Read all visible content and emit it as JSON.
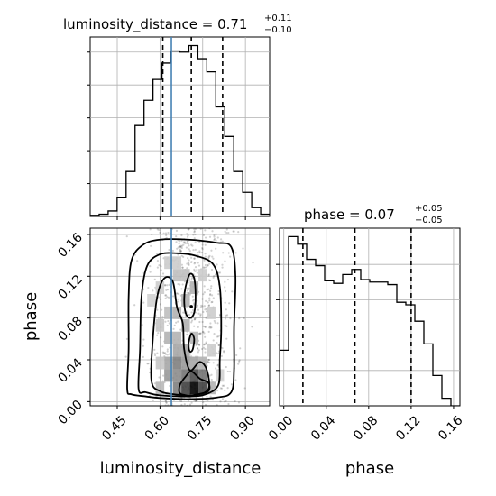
{
  "chart_data": {
    "type": "corner",
    "parameters": [
      "luminosity_distance",
      "phase"
    ],
    "truth_color": "#4682b4",
    "truths": {
      "luminosity_distance": 0.64
    },
    "luminosity_distance": {
      "title_name": "luminosity_distance",
      "title_value": "0.71",
      "title_upper": "+0.11",
      "title_lower": "−0.10",
      "quantiles": [
        0.61,
        0.71,
        0.82
      ],
      "xlim": [
        0.355,
        0.985
      ],
      "xticks": [
        0.45,
        0.6,
        0.75,
        0.9
      ],
      "xtick_labels": [
        "0.45",
        "0.60",
        "0.75",
        "0.90"
      ],
      "xlabel": "luminosity_distance",
      "hist_edges": [
        0.355,
        0.3865,
        0.418,
        0.4495,
        0.481,
        0.5125,
        0.544,
        0.5755,
        0.607,
        0.6385,
        0.67,
        0.7015,
        0.733,
        0.7645,
        0.796,
        0.8275,
        0.859,
        0.8905,
        0.922,
        0.9535,
        0.985
      ],
      "hist_counts": [
        1,
        2,
        5,
        17,
        41,
        83,
        106,
        125,
        140,
        151,
        150,
        156,
        144,
        132,
        100,
        73,
        41,
        22,
        8,
        2
      ]
    },
    "phase": {
      "title_name": "phase",
      "title_value": "0.07",
      "title_upper": "+0.05",
      "title_lower": "−0.05",
      "quantiles": [
        0.018,
        0.067,
        0.12
      ],
      "xlim": [
        -0.004,
        0.166
      ],
      "xticks": [
        0.0,
        0.04,
        0.08,
        0.12,
        0.16
      ],
      "xtick_labels": [
        "0.00",
        "0.04",
        "0.08",
        "0.12",
        "0.16"
      ],
      "xlabel": "phase",
      "hist_edges": [
        -0.004,
        0.0045,
        0.013,
        0.0215,
        0.03,
        0.0385,
        0.047,
        0.0555,
        0.064,
        0.0725,
        0.081,
        0.0895,
        0.098,
        0.1065,
        0.115,
        0.1235,
        0.132,
        0.1405,
        0.149,
        0.1575,
        0.166
      ],
      "hist_counts": [
        44,
        134,
        128,
        116,
        111,
        99,
        97,
        104,
        108,
        100,
        98,
        98,
        96,
        82,
        80,
        67,
        49,
        24,
        6,
        0
      ]
    },
    "joint": {
      "xlabel": "luminosity_distance",
      "ylabel": "phase",
      "xlim": [
        0.355,
        0.985
      ],
      "ylim": [
        -0.004,
        0.166
      ],
      "yticks": [
        0.0,
        0.04,
        0.08,
        0.12,
        0.16
      ],
      "ytick_labels": [
        "0.00",
        "0.04",
        "0.08",
        "0.12",
        "0.16"
      ],
      "contours": [
        [
          [
            0.485,
            0.012
          ],
          [
            0.49,
            0.05
          ],
          [
            0.49,
            0.1
          ],
          [
            0.5,
            0.135
          ],
          [
            0.54,
            0.15
          ],
          [
            0.6,
            0.155
          ],
          [
            0.7,
            0.155
          ],
          [
            0.8,
            0.152
          ],
          [
            0.85,
            0.148
          ],
          [
            0.865,
            0.12
          ],
          [
            0.86,
            0.07
          ],
          [
            0.86,
            0.03
          ],
          [
            0.85,
            0.009
          ],
          [
            0.8,
            0.004
          ],
          [
            0.7,
            0.0025
          ],
          [
            0.6,
            0.0035
          ],
          [
            0.55,
            0.005
          ],
          [
            0.5,
            0.007
          ]
        ],
        [
          [
            0.525,
            0.012
          ],
          [
            0.53,
            0.05
          ],
          [
            0.535,
            0.1
          ],
          [
            0.555,
            0.13
          ],
          [
            0.6,
            0.141
          ],
          [
            0.66,
            0.142
          ],
          [
            0.72,
            0.14
          ],
          [
            0.785,
            0.132
          ],
          [
            0.81,
            0.11
          ],
          [
            0.815,
            0.07
          ],
          [
            0.81,
            0.04
          ],
          [
            0.805,
            0.016
          ],
          [
            0.76,
            0.007
          ],
          [
            0.7,
            0.005
          ],
          [
            0.6,
            0.006
          ],
          [
            0.55,
            0.009
          ]
        ],
        [
          [
            0.57,
            0.02
          ],
          [
            0.575,
            0.06
          ],
          [
            0.59,
            0.1
          ],
          [
            0.615,
            0.118
          ],
          [
            0.645,
            0.115
          ],
          [
            0.66,
            0.09
          ],
          [
            0.68,
            0.075
          ],
          [
            0.685,
            0.05
          ],
          [
            0.705,
            0.03
          ],
          [
            0.74,
            0.038
          ],
          [
            0.765,
            0.03
          ],
          [
            0.77,
            0.012
          ],
          [
            0.72,
            0.006
          ],
          [
            0.65,
            0.007
          ],
          [
            0.6,
            0.01
          ]
        ],
        [
          [
            0.67,
            0.008
          ],
          [
            0.67,
            0.016
          ],
          [
            0.69,
            0.024
          ],
          [
            0.71,
            0.029
          ],
          [
            0.74,
            0.022
          ],
          [
            0.77,
            0.018
          ],
          [
            0.77,
            0.01
          ],
          [
            0.73,
            0.007
          ],
          [
            0.7,
            0.006
          ]
        ],
        [
          [
            0.685,
            0.098
          ],
          [
            0.69,
            0.11
          ],
          [
            0.705,
            0.122
          ],
          [
            0.72,
            0.118
          ],
          [
            0.725,
            0.1
          ],
          [
            0.72,
            0.085
          ],
          [
            0.705,
            0.08
          ],
          [
            0.69,
            0.085
          ]
        ],
        [
          [
            0.7,
            0.055
          ],
          [
            0.71,
            0.065
          ],
          [
            0.72,
            0.06
          ],
          [
            0.715,
            0.05
          ],
          [
            0.705,
            0.048
          ]
        ]
      ],
      "density_cells": [
        {
          "x": 0.72,
          "y": 0.013,
          "v": 1.0
        },
        {
          "x": 0.69,
          "y": 0.013,
          "v": 0.75
        },
        {
          "x": 0.75,
          "y": 0.013,
          "v": 0.75
        },
        {
          "x": 0.72,
          "y": 0.025,
          "v": 0.7
        },
        {
          "x": 0.66,
          "y": 0.013,
          "v": 0.5
        },
        {
          "x": 0.75,
          "y": 0.025,
          "v": 0.55
        },
        {
          "x": 0.66,
          "y": 0.037,
          "v": 0.5
        },
        {
          "x": 0.69,
          "y": 0.025,
          "v": 0.55
        },
        {
          "x": 0.63,
          "y": 0.025,
          "v": 0.4
        },
        {
          "x": 0.66,
          "y": 0.025,
          "v": 0.45
        },
        {
          "x": 0.63,
          "y": 0.037,
          "v": 0.35
        },
        {
          "x": 0.69,
          "y": 0.037,
          "v": 0.4
        },
        {
          "x": 0.72,
          "y": 0.037,
          "v": 0.35
        },
        {
          "x": 0.75,
          "y": 0.037,
          "v": 0.3
        },
        {
          "x": 0.66,
          "y": 0.049,
          "v": 0.35
        },
        {
          "x": 0.69,
          "y": 0.049,
          "v": 0.35
        },
        {
          "x": 0.63,
          "y": 0.061,
          "v": 0.3
        },
        {
          "x": 0.66,
          "y": 0.061,
          "v": 0.3
        },
        {
          "x": 0.69,
          "y": 0.073,
          "v": 0.3
        },
        {
          "x": 0.72,
          "y": 0.061,
          "v": 0.28
        },
        {
          "x": 0.66,
          "y": 0.085,
          "v": 0.3
        },
        {
          "x": 0.63,
          "y": 0.085,
          "v": 0.25
        },
        {
          "x": 0.69,
          "y": 0.097,
          "v": 0.3
        },
        {
          "x": 0.72,
          "y": 0.109,
          "v": 0.3
        },
        {
          "x": 0.69,
          "y": 0.121,
          "v": 0.25
        },
        {
          "x": 0.66,
          "y": 0.121,
          "v": 0.25
        },
        {
          "x": 0.66,
          "y": 0.133,
          "v": 0.2
        },
        {
          "x": 0.63,
          "y": 0.133,
          "v": 0.2
        },
        {
          "x": 0.6,
          "y": 0.109,
          "v": 0.2
        },
        {
          "x": 0.6,
          "y": 0.073,
          "v": 0.22
        },
        {
          "x": 0.57,
          "y": 0.097,
          "v": 0.18
        },
        {
          "x": 0.78,
          "y": 0.085,
          "v": 0.2
        },
        {
          "x": 0.78,
          "y": 0.049,
          "v": 0.2
        },
        {
          "x": 0.75,
          "y": 0.121,
          "v": 0.2
        },
        {
          "x": 0.6,
          "y": 0.037,
          "v": 0.22
        },
        {
          "x": 0.6,
          "y": 0.013,
          "v": 0.28
        },
        {
          "x": 0.78,
          "y": 0.013,
          "v": 0.3
        },
        {
          "x": 0.81,
          "y": 0.025,
          "v": 0.18
        }
      ],
      "dot": {
        "x": 0.71,
        "y": 0.091
      }
    }
  }
}
